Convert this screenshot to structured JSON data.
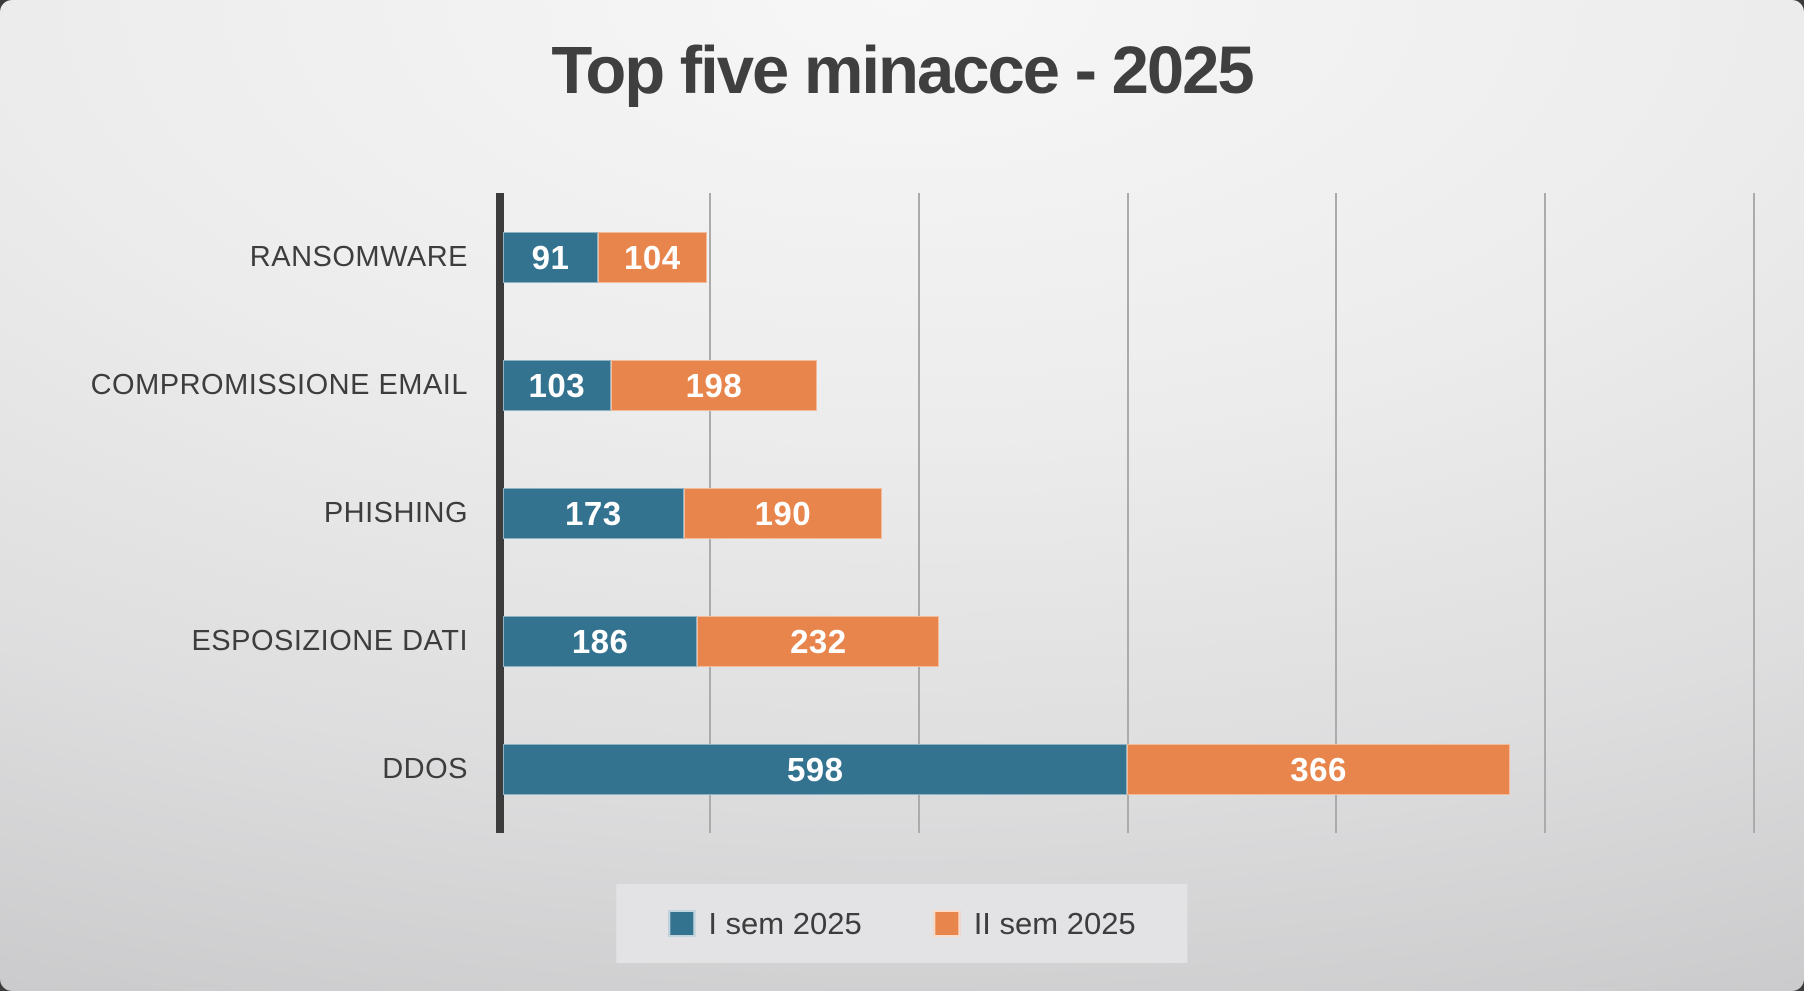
{
  "chart_data": {
    "type": "bar",
    "orientation": "horizontal",
    "stacked": true,
    "title": "Top five minacce - 2025",
    "categories": [
      "RANSOMWARE",
      "COMPROMISSIONE EMAIL",
      "PHISHING",
      "ESPOSIZIONE DATI",
      "DDOS"
    ],
    "series": [
      {
        "name": "I sem 2025",
        "color": "#347390",
        "values": [
          91,
          103,
          173,
          186,
          598
        ]
      },
      {
        "name": "II sem 2025",
        "color": "#E8854C",
        "values": [
          104,
          198,
          190,
          232,
          366
        ]
      }
    ],
    "x_axis": {
      "min": 0,
      "max": 1220,
      "gridlines": [
        200,
        400,
        600,
        800,
        1000,
        1200
      ],
      "tick_labels_visible": false
    },
    "value_labels": "inside-center",
    "legend_position": "bottom",
    "grid": "vertical-lines",
    "colors": {
      "title": "#3f3f3f",
      "category_labels": "#3d3d3d",
      "value_labels": "#ffffff",
      "axis_line": "#3c3c3c",
      "gridline": "#ababab",
      "legend_background": "#e3e3e5"
    }
  }
}
